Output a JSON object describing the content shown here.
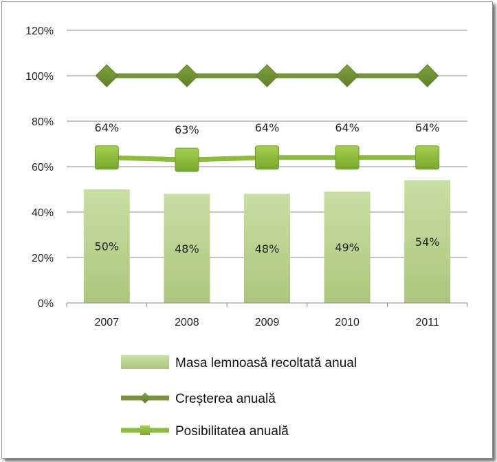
{
  "chart_data": {
    "type": "bar",
    "categories": [
      "2007",
      "2008",
      "2009",
      "2010",
      "2011"
    ],
    "series": [
      {
        "name": "Masa lemnoasă recoltată anual",
        "type": "bar",
        "values": [
          50,
          48,
          48,
          49,
          54
        ],
        "labels": [
          "50%",
          "48%",
          "48%",
          "49%",
          "54%"
        ],
        "color": "#c3d69b"
      },
      {
        "name": "Creșterea anuală",
        "type": "line",
        "marker": "diamond",
        "values": [
          100,
          100,
          100,
          100,
          100
        ],
        "color": "#77933c"
      },
      {
        "name": "Posibilitatea anuală",
        "type": "line",
        "marker": "square",
        "values": [
          64,
          63,
          64,
          64,
          64
        ],
        "labels": [
          "64%",
          "63%",
          "64%",
          "64%",
          "64%"
        ],
        "color": "#8dbb3f"
      }
    ],
    "y_ticks": [
      "0%",
      "20%",
      "40%",
      "60%",
      "80%",
      "100%",
      "120%"
    ],
    "ylim": [
      0,
      120
    ],
    "grid": true,
    "legend_position": "bottom"
  }
}
